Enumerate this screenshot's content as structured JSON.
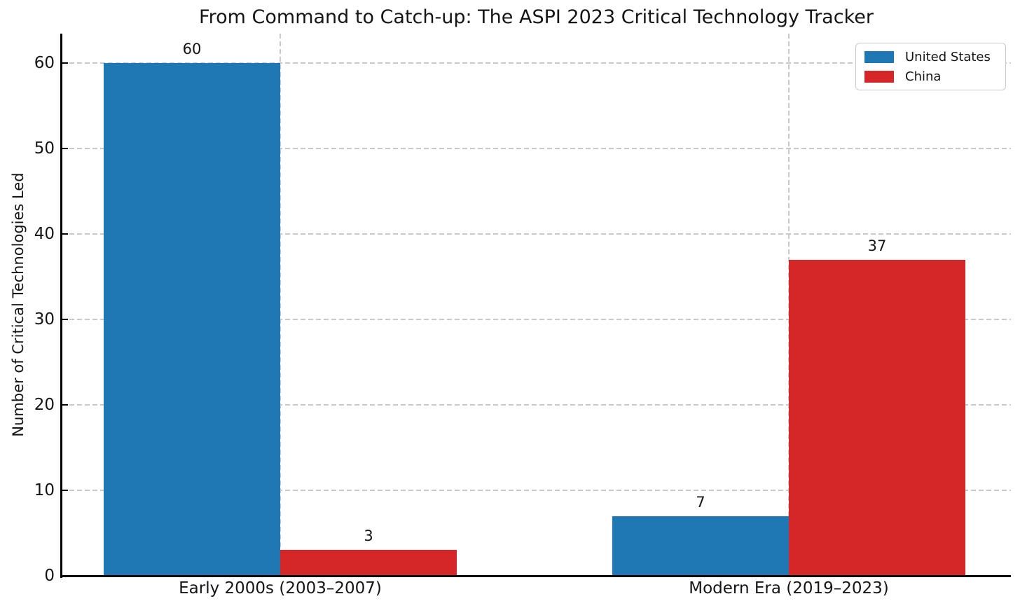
{
  "chart_data": {
    "type": "bar",
    "title": "From Command to Catch-up: The ASPI 2023 Critical Technology Tracker",
    "categories": [
      "Early 2000s (2003–2007)",
      "Modern Era (2019–2023)"
    ],
    "series": [
      {
        "name": "United States",
        "color": "#1f77b4",
        "values": [
          60,
          7
        ]
      },
      {
        "name": "China",
        "color": "#d62728",
        "values": [
          3,
          37
        ]
      }
    ],
    "xlabel": "",
    "ylabel": "Number of Critical Technologies Led",
    "yticks": [
      0,
      10,
      20,
      30,
      40,
      50,
      60
    ],
    "ylim": [
      0,
      63.5
    ],
    "grid": true,
    "grid_style": "dashed",
    "value_labels": [
      60,
      3,
      7,
      37
    ],
    "legend_position": "upper right"
  },
  "legend": {
    "items": [
      {
        "label": "United States",
        "color": "#1f77b4"
      },
      {
        "label": "China",
        "color": "#d62728"
      }
    ]
  },
  "colors": {
    "background": "#ffffff",
    "grid": "#c9c9c9",
    "spine": "#000000",
    "text": "#151515",
    "us_blue": "#1f77b4",
    "china_red": "#d62728"
  }
}
